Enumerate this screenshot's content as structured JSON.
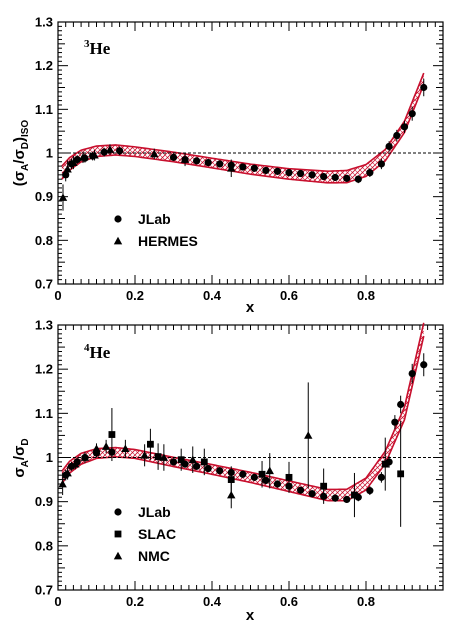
{
  "chart_data": [
    {
      "type": "scatter",
      "panel_label": {
        "sup": "3",
        "main": "He"
      },
      "xlabel": "x",
      "ylabel": {
        "pre": "(σ",
        "sub1": "A",
        "mid": "/σ",
        "sub2": "D",
        "post": ")",
        "sub3": "ISO"
      },
      "xlim": [
        0,
        1.0
      ],
      "ylim": [
        0.7,
        1.3
      ],
      "x_ticks": [
        0,
        0.2,
        0.4,
        0.6,
        0.8
      ],
      "x_tick_labels": [
        "0",
        "0.2",
        "0.4",
        "0.6",
        "0.8"
      ],
      "y_ticks": [
        0.7,
        0.8,
        0.9,
        1.0,
        1.1,
        1.2,
        1.3
      ],
      "y_tick_labels": [
        "0.7",
        "0.8",
        "0.9",
        "1",
        "1.1",
        "1.2",
        "1.3"
      ],
      "reference_line": 1.0,
      "band_center": [
        [
          0.01,
          0.955
        ],
        [
          0.03,
          0.975
        ],
        [
          0.06,
          0.993
        ],
        [
          0.1,
          1.004
        ],
        [
          0.15,
          1.007
        ],
        [
          0.2,
          1.003
        ],
        [
          0.3,
          0.991
        ],
        [
          0.4,
          0.977
        ],
        [
          0.5,
          0.963
        ],
        [
          0.6,
          0.952
        ],
        [
          0.7,
          0.945
        ],
        [
          0.75,
          0.946
        ],
        [
          0.8,
          0.96
        ],
        [
          0.85,
          0.995
        ],
        [
          0.9,
          1.06
        ],
        [
          0.95,
          1.17
        ]
      ],
      "band_halfwidth": [
        [
          0.01,
          0.015
        ],
        [
          0.1,
          0.012
        ],
        [
          0.2,
          0.011
        ],
        [
          0.4,
          0.011
        ],
        [
          0.6,
          0.012
        ],
        [
          0.75,
          0.014
        ],
        [
          0.85,
          0.013
        ],
        [
          0.95,
          0.013
        ]
      ],
      "legend": [
        {
          "label": "JLab",
          "marker": "circle"
        },
        {
          "label": "HERMES",
          "marker": "triangle"
        }
      ],
      "series": [
        {
          "name": "JLab",
          "marker": "circle",
          "points": [
            [
              0.02,
              0.95,
              0.015
            ],
            [
              0.035,
              0.975,
              0.012
            ],
            [
              0.05,
              0.985,
              0.01
            ],
            [
              0.07,
              0.988,
              0.01
            ],
            [
              0.09,
              0.993,
              0.01
            ],
            [
              0.12,
              1.002,
              0.01
            ],
            [
              0.16,
              1.005,
              0.01
            ],
            [
              0.3,
              0.99,
              0.008
            ],
            [
              0.33,
              0.985,
              0.008
            ],
            [
              0.36,
              0.982,
              0.008
            ],
            [
              0.39,
              0.978,
              0.008
            ],
            [
              0.42,
              0.975,
              0.008
            ],
            [
              0.45,
              0.972,
              0.008
            ],
            [
              0.48,
              0.968,
              0.008
            ],
            [
              0.51,
              0.965,
              0.008
            ],
            [
              0.54,
              0.96,
              0.008
            ],
            [
              0.57,
              0.958,
              0.008
            ],
            [
              0.6,
              0.955,
              0.008
            ],
            [
              0.63,
              0.953,
              0.008
            ],
            [
              0.66,
              0.95,
              0.008
            ],
            [
              0.69,
              0.946,
              0.008
            ],
            [
              0.72,
              0.944,
              0.008
            ],
            [
              0.75,
              0.942,
              0.008
            ],
            [
              0.78,
              0.94,
              0.009
            ],
            [
              0.81,
              0.955,
              0.01
            ],
            [
              0.84,
              0.975,
              0.012
            ],
            [
              0.86,
              1.015,
              0.012
            ],
            [
              0.88,
              1.04,
              0.013
            ],
            [
              0.9,
              1.06,
              0.014
            ],
            [
              0.92,
              1.09,
              0.016
            ],
            [
              0.95,
              1.15,
              0.02
            ]
          ]
        },
        {
          "name": "HERMES",
          "marker": "triangle",
          "points": [
            [
              0.013,
              0.898,
              0.03
            ],
            [
              0.025,
              0.963,
              0.02
            ],
            [
              0.04,
              0.978,
              0.015
            ],
            [
              0.065,
              0.99,
              0.013
            ],
            [
              0.095,
              0.995,
              0.012
            ],
            [
              0.135,
              1.008,
              0.012
            ],
            [
              0.25,
              0.998,
              0.012
            ],
            [
              0.33,
              0.985,
              0.015
            ],
            [
              0.45,
              0.965,
              0.02
            ]
          ]
        }
      ]
    },
    {
      "type": "scatter",
      "panel_label": {
        "sup": "4",
        "main": "He"
      },
      "xlabel": "x",
      "ylabel": {
        "pre": "σ",
        "sub1": "A",
        "mid": "/σ",
        "sub2": "D",
        "post": "",
        "sub3": ""
      },
      "xlim": [
        0,
        1.0
      ],
      "ylim": [
        0.7,
        1.3
      ],
      "x_ticks": [
        0,
        0.2,
        0.4,
        0.6,
        0.8
      ],
      "x_tick_labels": [
        "0",
        "0.2",
        "0.4",
        "0.6",
        "0.8"
      ],
      "y_ticks": [
        0.7,
        0.8,
        0.9,
        1.0,
        1.1,
        1.2,
        1.3
      ],
      "y_tick_labels": [
        "0.7",
        "0.8",
        "0.9",
        "1",
        "1.1",
        "1.2",
        "1.3"
      ],
      "reference_line": 1.0,
      "band_center": [
        [
          0.01,
          0.955
        ],
        [
          0.03,
          0.978
        ],
        [
          0.06,
          0.997
        ],
        [
          0.1,
          1.009
        ],
        [
          0.15,
          1.012
        ],
        [
          0.2,
          1.008
        ],
        [
          0.3,
          0.99
        ],
        [
          0.4,
          0.973
        ],
        [
          0.5,
          0.955
        ],
        [
          0.6,
          0.935
        ],
        [
          0.7,
          0.915
        ],
        [
          0.75,
          0.915
        ],
        [
          0.8,
          0.94
        ],
        [
          0.85,
          1.0
        ],
        [
          0.9,
          1.1
        ],
        [
          0.95,
          1.29
        ]
      ],
      "band_halfwidth": [
        [
          0.01,
          0.014
        ],
        [
          0.1,
          0.011
        ],
        [
          0.2,
          0.01
        ],
        [
          0.4,
          0.011
        ],
        [
          0.6,
          0.012
        ],
        [
          0.75,
          0.013
        ],
        [
          0.85,
          0.014
        ],
        [
          0.95,
          0.015
        ]
      ],
      "legend": [
        {
          "label": "JLab",
          "marker": "circle"
        },
        {
          "label": "SLAC",
          "marker": "square"
        },
        {
          "label": "NMC",
          "marker": "triangle"
        }
      ],
      "series": [
        {
          "name": "JLab",
          "marker": "circle",
          "points": [
            [
              0.02,
              0.96,
              0.012
            ],
            [
              0.035,
              0.98,
              0.01
            ],
            [
              0.05,
              0.99,
              0.01
            ],
            [
              0.07,
              1.0,
              0.01
            ],
            [
              0.1,
              1.01,
              0.01
            ],
            [
              0.14,
              1.012,
              0.01
            ],
            [
              0.3,
              0.99,
              0.008
            ],
            [
              0.33,
              0.985,
              0.008
            ],
            [
              0.36,
              0.98,
              0.008
            ],
            [
              0.39,
              0.975,
              0.008
            ],
            [
              0.42,
              0.97,
              0.008
            ],
            [
              0.45,
              0.966,
              0.008
            ],
            [
              0.48,
              0.962,
              0.008
            ],
            [
              0.51,
              0.955,
              0.008
            ],
            [
              0.54,
              0.948,
              0.008
            ],
            [
              0.57,
              0.94,
              0.008
            ],
            [
              0.6,
              0.935,
              0.008
            ],
            [
              0.63,
              0.926,
              0.008
            ],
            [
              0.66,
              0.918,
              0.008
            ],
            [
              0.69,
              0.912,
              0.008
            ],
            [
              0.72,
              0.908,
              0.008
            ],
            [
              0.75,
              0.905,
              0.008
            ],
            [
              0.78,
              0.91,
              0.009
            ],
            [
              0.81,
              0.925,
              0.01
            ],
            [
              0.84,
              0.955,
              0.012
            ],
            [
              0.86,
              0.99,
              0.013
            ],
            [
              0.875,
              1.08,
              0.016
            ],
            [
              0.89,
              1.12,
              0.02
            ],
            [
              0.92,
              1.19,
              0.022
            ],
            [
              0.95,
              1.21,
              0.026
            ]
          ]
        },
        {
          "name": "SLAC",
          "marker": "square",
          "points": [
            [
              0.14,
              1.052,
              0.06
            ],
            [
              0.24,
              1.03,
              0.035
            ],
            [
              0.26,
              1.002,
              0.03
            ],
            [
              0.32,
              0.995,
              0.025
            ],
            [
              0.38,
              0.99,
              0.03
            ],
            [
              0.45,
              0.95,
              0.03
            ],
            [
              0.53,
              0.962,
              0.03
            ],
            [
              0.6,
              0.955,
              0.035
            ],
            [
              0.69,
              0.935,
              0.04
            ],
            [
              0.77,
              0.915,
              0.05
            ],
            [
              0.85,
              0.985,
              0.06
            ],
            [
              0.89,
              0.963,
              0.12
            ]
          ]
        },
        {
          "name": "NMC",
          "marker": "triangle",
          "points": [
            [
              0.012,
              0.94,
              0.025
            ],
            [
              0.025,
              0.965,
              0.015
            ],
            [
              0.045,
              0.985,
              0.012
            ],
            [
              0.07,
              1.0,
              0.012
            ],
            [
              0.1,
              1.02,
              0.012
            ],
            [
              0.125,
              1.025,
              0.015
            ],
            [
              0.175,
              1.02,
              0.02
            ],
            [
              0.225,
              1.005,
              0.025
            ],
            [
              0.275,
              1.0,
              0.03
            ],
            [
              0.35,
              0.995,
              0.03
            ],
            [
              0.45,
              0.915,
              0.03
            ],
            [
              0.55,
              0.97,
              0.04
            ],
            [
              0.65,
              1.05,
              0.12
            ]
          ]
        }
      ]
    }
  ]
}
